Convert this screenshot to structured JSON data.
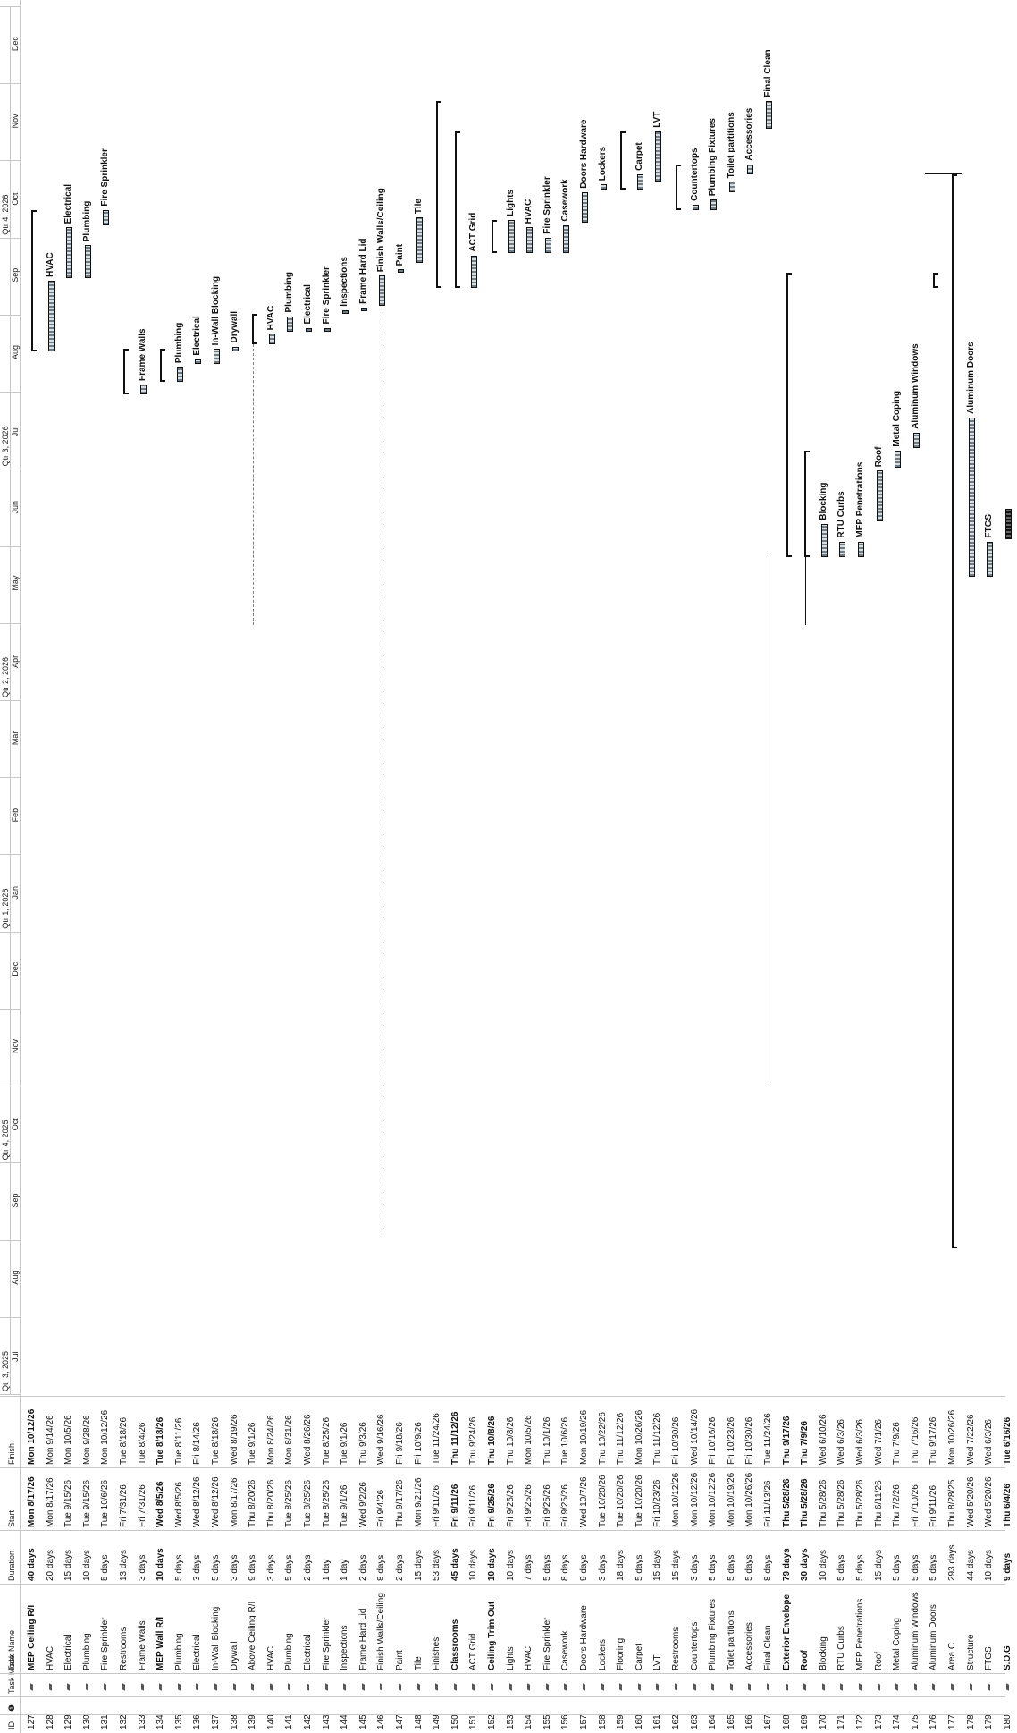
{
  "columns": {
    "id": "ID",
    "info": "❶",
    "task_mode": "Task Mode",
    "task_name": "Task Name",
    "duration": "Duration",
    "start": "Start",
    "finish": "Finish"
  },
  "timescale": {
    "quarters": [
      "Qtr 3, 2025",
      "Qtr 4, 2025",
      "Qtr 1, 2026",
      "Qtr 2, 2026",
      "Qtr 3, 2026",
      "Qtr 4, 2026"
    ],
    "months": [
      "Jul",
      "Aug",
      "Sep",
      "Oct",
      "Nov",
      "Dec",
      "Jan",
      "Feb",
      "Mar",
      "Apr",
      "May",
      "Jun",
      "Jul",
      "Aug",
      "Sep",
      "Oct",
      "Nov",
      "Dec"
    ]
  },
  "rows": [
    {
      "id": "127",
      "name": "MEP Ceiling R/I",
      "duration": "40 days",
      "start": "Mon 8/17/26",
      "finish": "Mon 10/12/26",
      "bold": true
    },
    {
      "id": "128",
      "name": "HVAC",
      "duration": "20 days",
      "start": "Mon 8/17/26",
      "finish": "Mon 9/14/26",
      "bold": false
    },
    {
      "id": "129",
      "name": "Electrical",
      "duration": "15 days",
      "start": "Tue 9/15/26",
      "finish": "Mon 10/5/26",
      "bold": false
    },
    {
      "id": "130",
      "name": "Plumbing",
      "duration": "10 days",
      "start": "Tue 9/15/26",
      "finish": "Mon 9/28/26",
      "bold": false
    },
    {
      "id": "131",
      "name": "Fire Sprinkler",
      "duration": "5 days",
      "start": "Tue 10/6/26",
      "finish": "Mon 10/12/26",
      "bold": false
    },
    {
      "id": "132",
      "name": "Restrooms",
      "duration": "13 days",
      "start": "Fri 7/31/26",
      "finish": "Tue 8/18/26",
      "bold": false
    },
    {
      "id": "133",
      "name": "Frame Walls",
      "duration": "3 days",
      "start": "Fri 7/31/26",
      "finish": "Tue 8/4/26",
      "bold": false
    },
    {
      "id": "134",
      "name": "MEP Wall R/I",
      "duration": "10 days",
      "start": "Wed 8/5/26",
      "finish": "Tue 8/18/26",
      "bold": true
    },
    {
      "id": "135",
      "name": "Plumbing",
      "duration": "5 days",
      "start": "Wed 8/5/26",
      "finish": "Tue 8/11/26",
      "bold": false
    },
    {
      "id": "136",
      "name": "Electrical",
      "duration": "3 days",
      "start": "Wed 8/12/26",
      "finish": "Fri 8/14/26",
      "bold": false
    },
    {
      "id": "137",
      "name": "In-Wall Blocking",
      "duration": "5 days",
      "start": "Wed 8/12/26",
      "finish": "Tue 8/18/26",
      "bold": false
    },
    {
      "id": "138",
      "name": "Drywall",
      "duration": "3 days",
      "start": "Mon 8/17/26",
      "finish": "Wed 8/19/26",
      "bold": false
    },
    {
      "id": "139",
      "name": "Above Ceiling R/I",
      "duration": "9 days",
      "start": "Thu 8/20/26",
      "finish": "Tue 9/1/26",
      "bold": false
    },
    {
      "id": "140",
      "name": "HVAC",
      "duration": "3 days",
      "start": "Thu 8/20/26",
      "finish": "Mon 8/24/26",
      "bold": false
    },
    {
      "id": "141",
      "name": "Plumbing",
      "duration": "5 days",
      "start": "Tue 8/25/26",
      "finish": "Mon 8/31/26",
      "bold": false
    },
    {
      "id": "142",
      "name": "Electrical",
      "duration": "2 days",
      "start": "Tue 8/25/26",
      "finish": "Wed 8/26/26",
      "bold": false
    },
    {
      "id": "143",
      "name": "Fire Sprinkler",
      "duration": "1 day",
      "start": "Tue 8/25/26",
      "finish": "Tue 8/25/26",
      "bold": false
    },
    {
      "id": "144",
      "name": "Inspections",
      "duration": "1 day",
      "start": "Tue 9/1/26",
      "finish": "Tue 9/1/26",
      "bold": false
    },
    {
      "id": "145",
      "name": "Frame Hard Lid",
      "duration": "2 days",
      "start": "Wed 9/2/26",
      "finish": "Thu 9/3/26",
      "bold": false
    },
    {
      "id": "146",
      "name": "Finish Walls/Ceiling",
      "duration": "8 days",
      "start": "Fri 9/4/26",
      "finish": "Wed 9/16/26",
      "bold": false
    },
    {
      "id": "147",
      "name": "Paint",
      "duration": "2 days",
      "start": "Thu 9/17/26",
      "finish": "Fri 9/18/26",
      "bold": false
    },
    {
      "id": "148",
      "name": "Tile",
      "duration": "15 days",
      "start": "Mon 9/21/26",
      "finish": "Fri 10/9/26",
      "bold": false
    },
    {
      "id": "149",
      "name": "Finishes",
      "duration": "53 days",
      "start": "Fri 9/11/26",
      "finish": "Tue 11/24/26",
      "bold": false
    },
    {
      "id": "150",
      "name": "Classrooms",
      "duration": "45 days",
      "start": "Fri 9/11/26",
      "finish": "Thu 11/12/26",
      "bold": true
    },
    {
      "id": "151",
      "name": "ACT Grid",
      "duration": "10 days",
      "start": "Fri 9/11/26",
      "finish": "Thu 9/24/26",
      "bold": false
    },
    {
      "id": "152",
      "name": "Ceiling Trim Out",
      "duration": "10 days",
      "start": "Fri 9/25/26",
      "finish": "Thu 10/8/26",
      "bold": true
    },
    {
      "id": "153",
      "name": "Lights",
      "duration": "10 days",
      "start": "Fri 9/25/26",
      "finish": "Thu 10/8/26",
      "bold": false
    },
    {
      "id": "154",
      "name": "HVAC",
      "duration": "7 days",
      "start": "Fri 9/25/26",
      "finish": "Mon 10/5/26",
      "bold": false
    },
    {
      "id": "155",
      "name": "Fire Sprinkler",
      "duration": "5 days",
      "start": "Fri 9/25/26",
      "finish": "Thu 10/1/26",
      "bold": false
    },
    {
      "id": "156",
      "name": "Casework",
      "duration": "8 days",
      "start": "Fri 9/25/26",
      "finish": "Tue 10/6/26",
      "bold": false
    },
    {
      "id": "157",
      "name": "Doors Hardware",
      "duration": "9 days",
      "start": "Wed 10/7/26",
      "finish": "Mon 10/19/26",
      "bold": false
    },
    {
      "id": "158",
      "name": "Lockers",
      "duration": "3 days",
      "start": "Tue 10/20/26",
      "finish": "Thu 10/22/26",
      "bold": false
    },
    {
      "id": "159",
      "name": "Flooring",
      "duration": "18 days",
      "start": "Tue 10/20/26",
      "finish": "Thu 11/12/26",
      "bold": false
    },
    {
      "id": "160",
      "name": "Carpet",
      "duration": "5 days",
      "start": "Tue 10/20/26",
      "finish": "Mon 10/26/26",
      "bold": false
    },
    {
      "id": "161",
      "name": "LVT",
      "duration": "15 days",
      "start": "Fri 10/23/26",
      "finish": "Thu 11/12/26",
      "bold": false
    },
    {
      "id": "162",
      "name": "Restrooms",
      "duration": "15 days",
      "start": "Mon 10/12/26",
      "finish": "Fri 10/30/26",
      "bold": false
    },
    {
      "id": "163",
      "name": "Countertops",
      "duration": "3 days",
      "start": "Mon 10/12/26",
      "finish": "Wed 10/14/26",
      "bold": false
    },
    {
      "id": "164",
      "name": "Plumbing Fixtures",
      "duration": "5 days",
      "start": "Mon 10/12/26",
      "finish": "Fri 10/16/26",
      "bold": false
    },
    {
      "id": "165",
      "name": "Toilet partitions",
      "duration": "5 days",
      "start": "Mon 10/19/26",
      "finish": "Fri 10/23/26",
      "bold": false
    },
    {
      "id": "166",
      "name": "Accessories",
      "duration": "5 days",
      "start": "Mon 10/26/26",
      "finish": "Fri 10/30/26",
      "bold": false
    },
    {
      "id": "167",
      "name": "Final Clean",
      "duration": "8 days",
      "start": "Fri 11/13/26",
      "finish": "Tue 11/24/26",
      "bold": false
    },
    {
      "id": "168",
      "name": "Exterior Envelope",
      "duration": "79 days",
      "start": "Thu 5/28/26",
      "finish": "Thu 9/17/26",
      "bold": true
    },
    {
      "id": "169",
      "name": "Roof",
      "duration": "30 days",
      "start": "Thu 5/28/26",
      "finish": "Thu 7/9/26",
      "bold": true
    },
    {
      "id": "170",
      "name": "Blocking",
      "duration": "10 days",
      "start": "Thu 5/28/26",
      "finish": "Wed 6/10/26",
      "bold": false
    },
    {
      "id": "171",
      "name": "RTU Curbs",
      "duration": "5 days",
      "start": "Thu 5/28/26",
      "finish": "Wed 6/3/26",
      "bold": false
    },
    {
      "id": "172",
      "name": "MEP Penetrations",
      "duration": "5 days",
      "start": "Thu 5/28/26",
      "finish": "Wed 6/3/26",
      "bold": false
    },
    {
      "id": "173",
      "name": "Roof",
      "duration": "15 days",
      "start": "Thu 6/11/26",
      "finish": "Wed 7/1/26",
      "bold": false
    },
    {
      "id": "174",
      "name": "Metal Coping",
      "duration": "5 days",
      "start": "Thu 7/2/26",
      "finish": "Thu 7/9/26",
      "bold": false
    },
    {
      "id": "175",
      "name": "Aluminum Windows",
      "duration": "5 days",
      "start": "Fri 7/10/26",
      "finish": "Thu 7/16/26",
      "bold": false
    },
    {
      "id": "176",
      "name": "Aluminum Doors",
      "duration": "5 days",
      "start": "Fri 9/11/26",
      "finish": "Thu 9/17/26",
      "bold": false
    },
    {
      "id": "177",
      "name": "Area C",
      "duration": "293 days",
      "start": "Thu 8/28/25",
      "finish": "Mon 10/26/26",
      "bold": false
    },
    {
      "id": "178",
      "name": "Structure",
      "duration": "44 days",
      "start": "Wed 5/20/26",
      "finish": "Wed 7/22/26",
      "bold": false
    },
    {
      "id": "179",
      "name": "FTGS",
      "duration": "10 days",
      "start": "Wed 5/20/26",
      "finish": "Wed 6/3/26",
      "bold": false
    },
    {
      "id": "180",
      "name": "S.O.G",
      "duration": "9 days",
      "start": "Thu 6/4/26",
      "finish": "Tue 6/16/26",
      "bold": true
    }
  ],
  "bar_labels": [
    "HVAC",
    "Electrical",
    "Plumbing",
    "Fire Sprinkler",
    "Frame Walls",
    "Plumbing",
    "Electrical",
    "In-Wall Blocking",
    "Drywall",
    "HVAC",
    "Plumbing",
    "Electrical",
    "Fire Sprinkler",
    "Inspections",
    "Frame Hard Lid",
    "Finish Walls/Ceiling",
    "Paint",
    "Tile",
    "ACT Grid",
    "Lights",
    "HVAC",
    "Fire Sprinkler",
    "Casework",
    "Doors Hardware",
    "Lockers",
    "Carpet",
    "LVT",
    "Countertops",
    "Plumbing Fixtures",
    "Toilet partitions",
    "Accessories",
    "Final Clean",
    "Blocking",
    "RTU Curbs",
    "MEP Penetrations",
    "Roof",
    "Metal Coping",
    "Aluminum Windows",
    "Aluminum Doors",
    "FTGS"
  ]
}
